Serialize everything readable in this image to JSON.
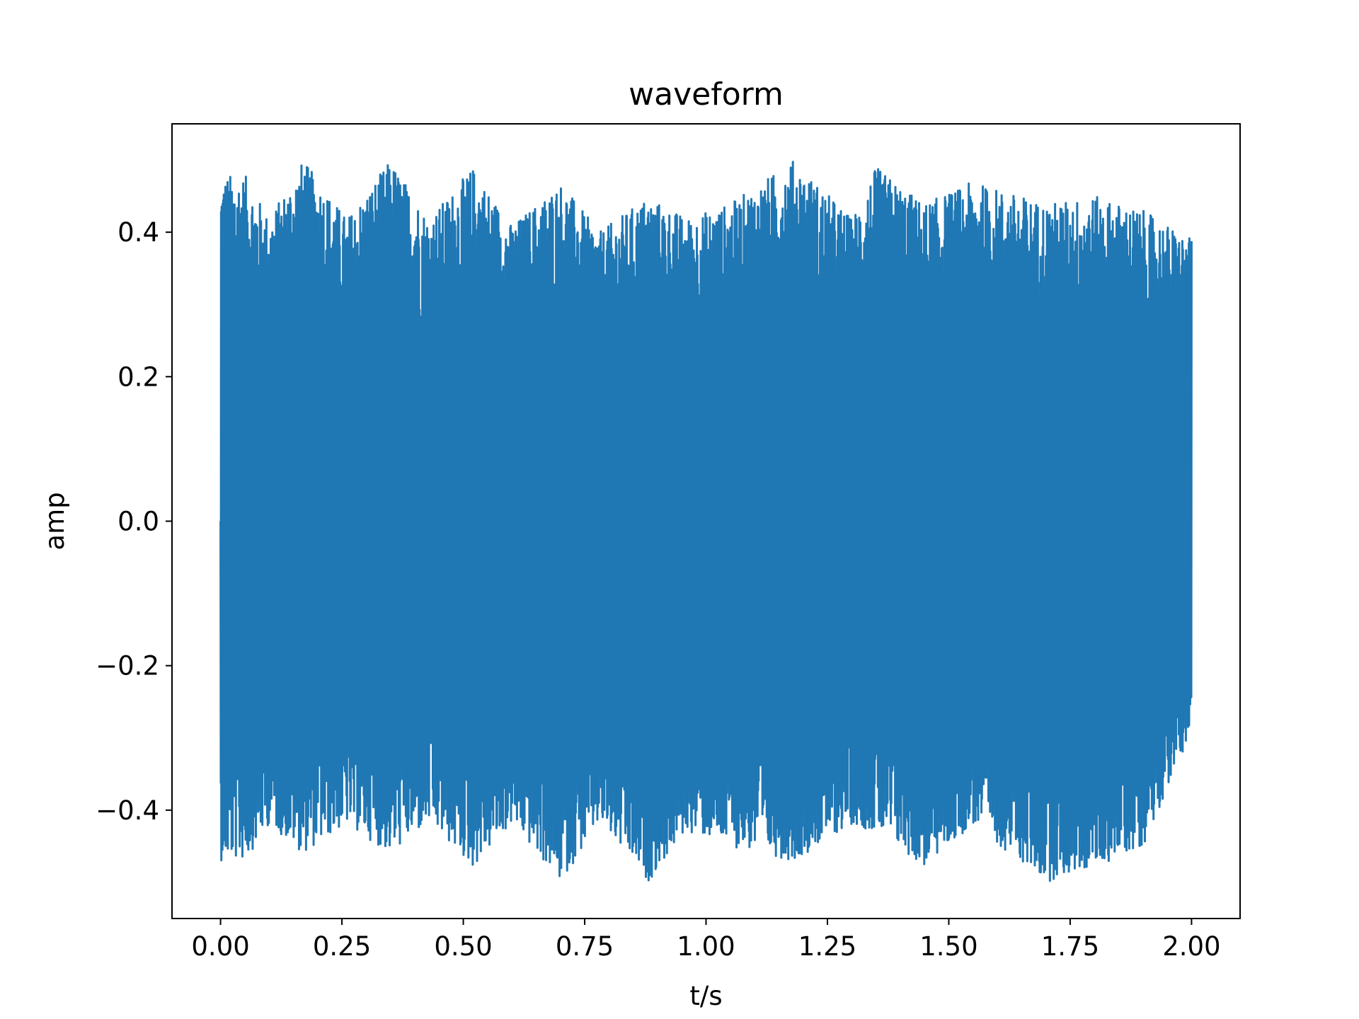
{
  "chart_data": {
    "type": "line",
    "title": "waveform",
    "xlabel": "t/s",
    "ylabel": "amp",
    "xlim": [
      -0.1,
      2.1
    ],
    "ylim": [
      -0.55,
      0.55
    ],
    "xticks": [
      0.0,
      0.25,
      0.5,
      0.75,
      1.0,
      1.25,
      1.5,
      1.75,
      2.0
    ],
    "xtick_labels": [
      "0.00",
      "0.25",
      "0.50",
      "0.75",
      "1.00",
      "1.25",
      "1.50",
      "1.75",
      "2.00"
    ],
    "yticks": [
      -0.4,
      -0.2,
      0.0,
      0.2,
      0.4
    ],
    "ytick_labels": [
      "−0.4",
      "−0.2",
      "0.0",
      "0.2",
      "0.4"
    ],
    "grid": false,
    "legend": "none",
    "color": "#1f77b4",
    "series": [
      {
        "x_range": [
          0.0,
          2.0
        ],
        "envelope": {
          "t": [
            0.0,
            0.05,
            0.1,
            0.17,
            0.26,
            0.35,
            0.43,
            0.52,
            0.6,
            0.7,
            0.78,
            0.88,
            0.96,
            1.05,
            1.18,
            1.3,
            1.35,
            1.45,
            1.55,
            1.7,
            1.8,
            1.9,
            2.0
          ],
          "upper": [
            0.48,
            0.48,
            0.42,
            0.5,
            0.42,
            0.5,
            0.42,
            0.49,
            0.41,
            0.47,
            0.4,
            0.45,
            0.42,
            0.44,
            0.5,
            0.42,
            0.49,
            0.44,
            0.47,
            0.44,
            0.45,
            0.43,
            0.39
          ],
          "lower": [
            -0.47,
            -0.47,
            -0.42,
            -0.46,
            -0.42,
            -0.46,
            -0.42,
            -0.48,
            -0.42,
            -0.5,
            -0.42,
            -0.5,
            -0.43,
            -0.45,
            -0.47,
            -0.42,
            -0.43,
            -0.48,
            -0.42,
            -0.5,
            -0.48,
            -0.45,
            -0.29
          ]
        }
      }
    ]
  }
}
